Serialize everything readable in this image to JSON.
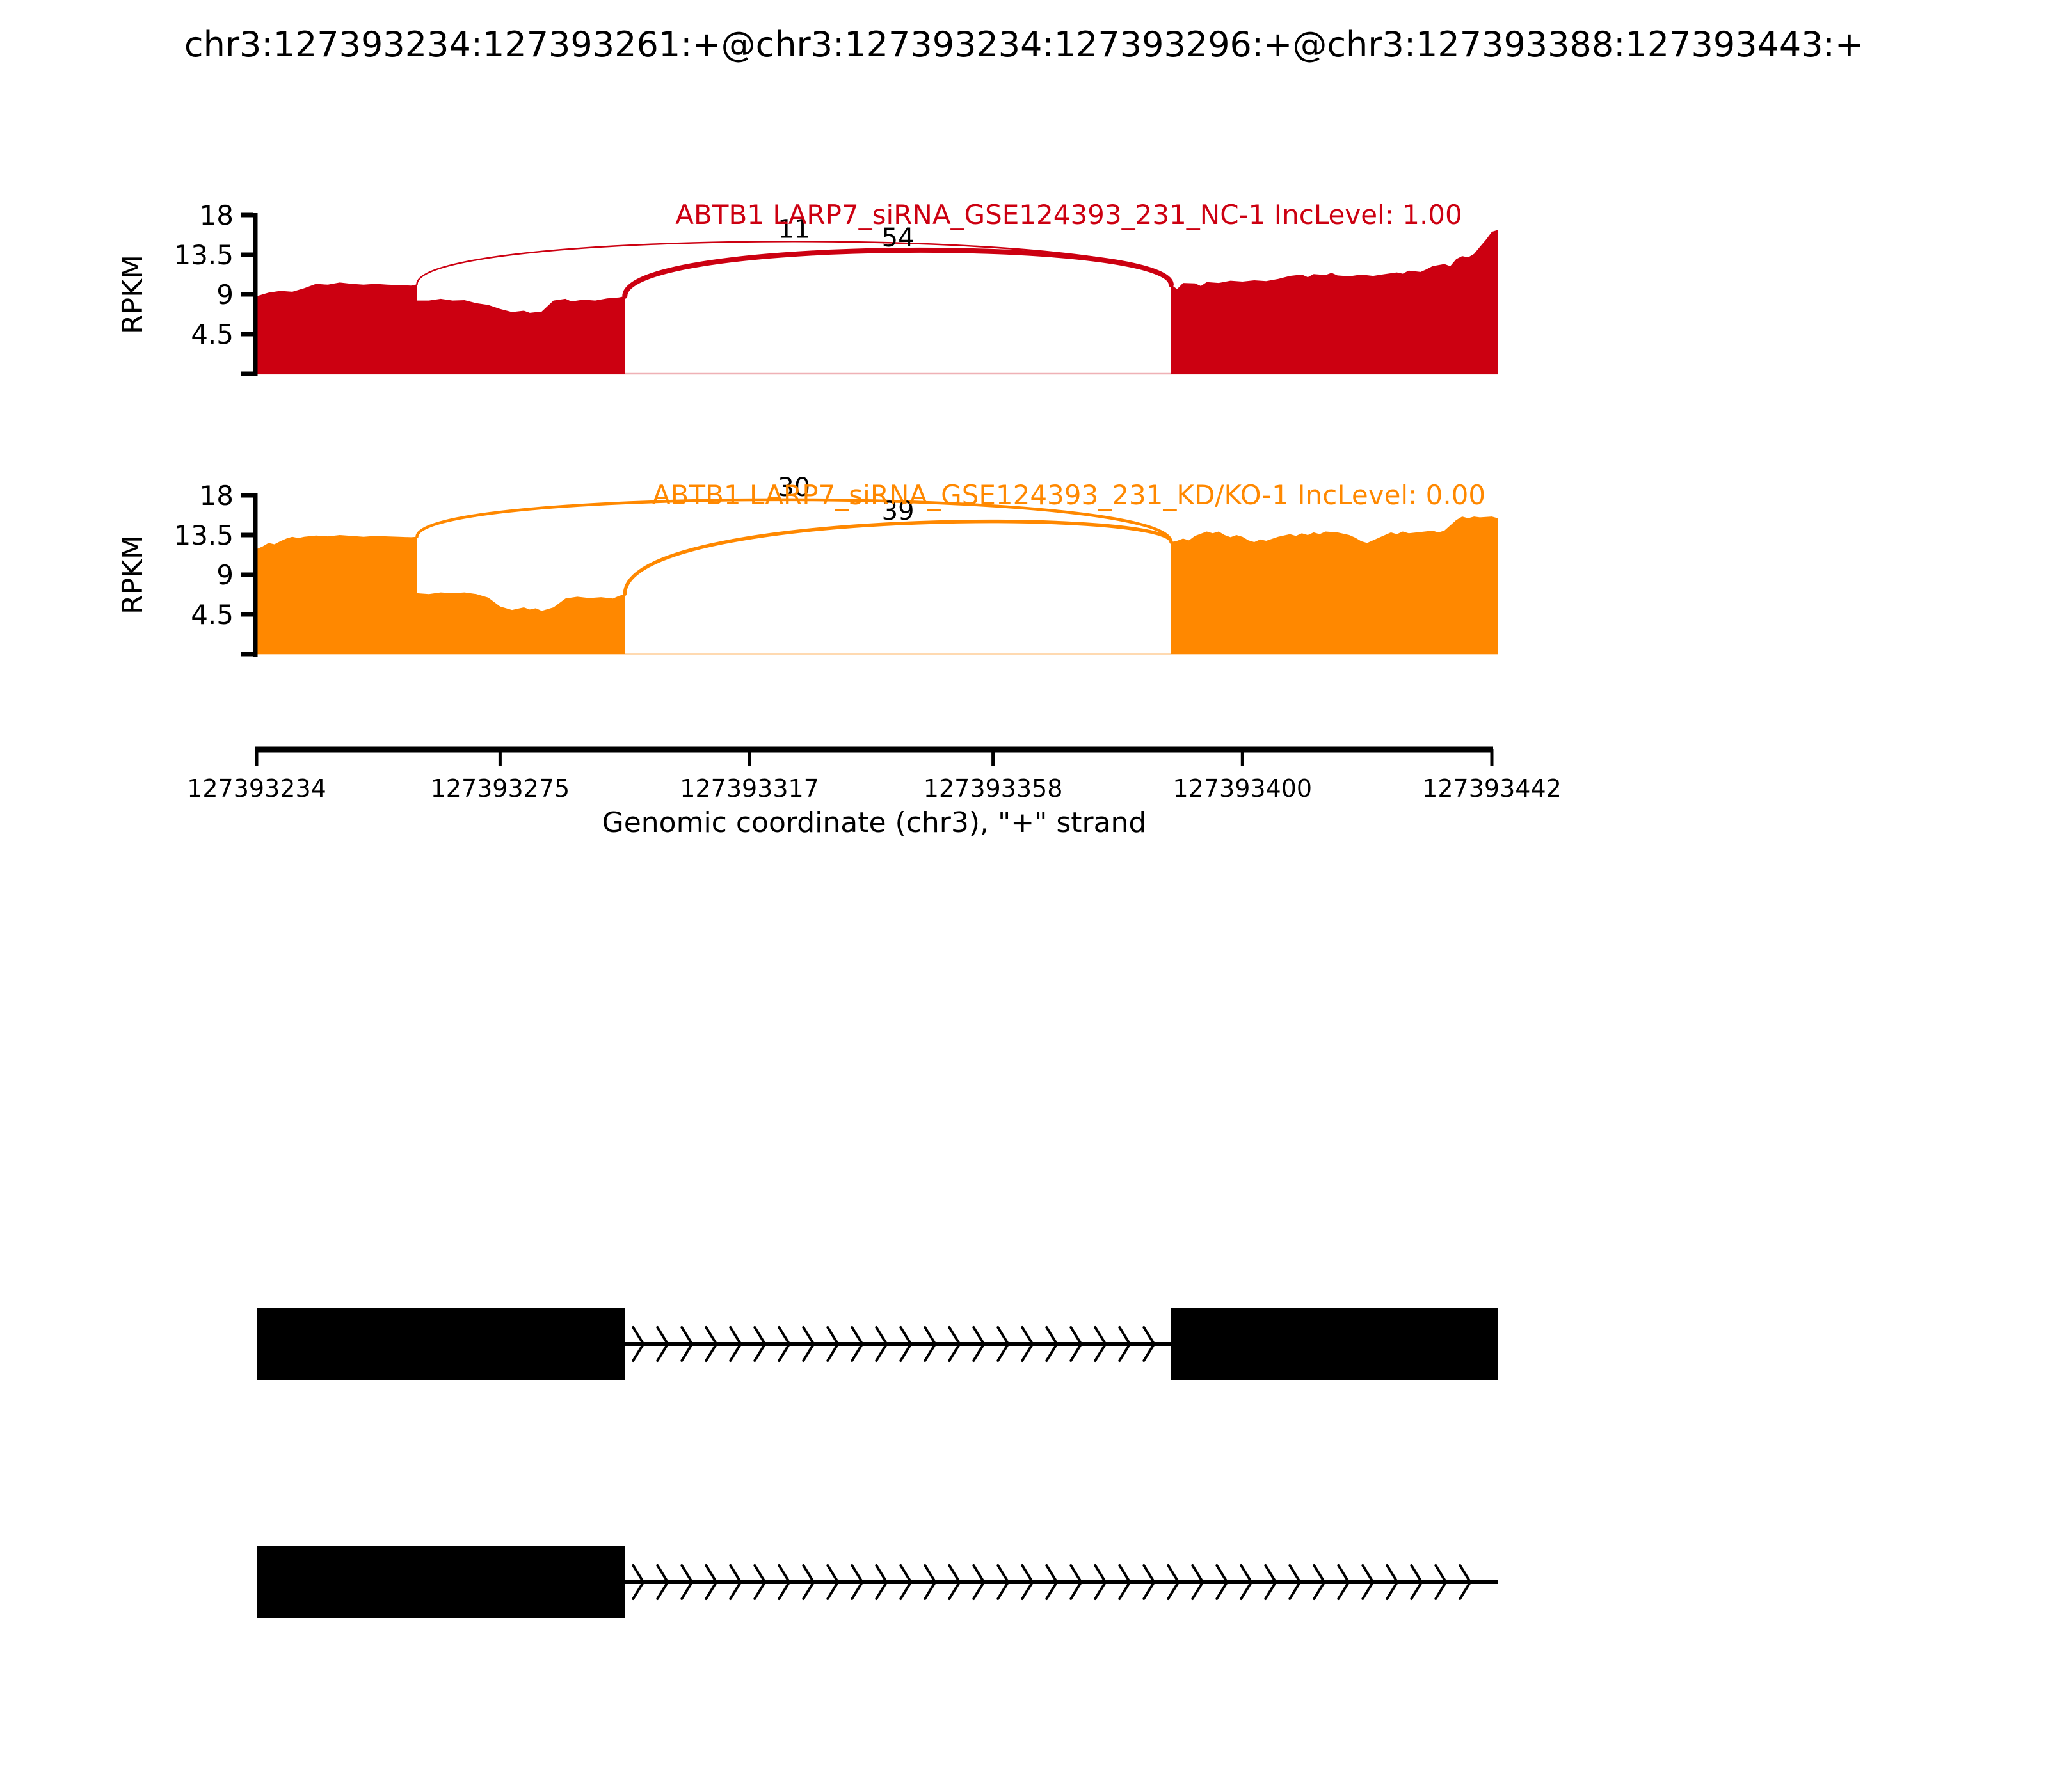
{
  "main_title": "chr3:127393234:127393261:+@chr3:127393234:127393296:+@chr3:127393388:127393443:+",
  "chart_data": {
    "type": "sashimi",
    "xlabel": "Genomic coordinate (chr3), \"+\" strand",
    "ylabel": "RPKM",
    "x_range": [
      127393234,
      127393442
    ],
    "x_ticks": [
      127393234,
      127393275,
      127393317,
      127393358,
      127393400,
      127393442
    ],
    "y_range": [
      0,
      18
    ],
    "y_ticks": [
      4.5,
      9,
      13.5,
      18
    ],
    "tracks": [
      {
        "label": "ABTB1 LARP7_siRNA_GSE124393_231_NC-1 IncLevel: 1.00",
        "color": "#CC0011",
        "coverage_segments": [
          {
            "points": [
              [
                127393234,
                8.8
              ],
              [
                127393236,
                9.2
              ],
              [
                127393238,
                9.4
              ],
              [
                127393240,
                9.3
              ],
              [
                127393242,
                9.7
              ],
              [
                127393244,
                10.2
              ],
              [
                127393246,
                10.1
              ],
              [
                127393248,
                10.35
              ],
              [
                127393250,
                10.2
              ],
              [
                127393252,
                10.1
              ],
              [
                127393254,
                10.2
              ],
              [
                127393256,
                10.1
              ],
              [
                127393258,
                10.05
              ],
              [
                127393260,
                10.0
              ],
              [
                127393261,
                10.15
              ],
              [
                127393261,
                8.3
              ],
              [
                127393263,
                8.3
              ],
              [
                127393265,
                8.5
              ],
              [
                127393267,
                8.3
              ],
              [
                127393269,
                8.35
              ],
              [
                127393271,
                8.0
              ],
              [
                127393273,
                7.8
              ],
              [
                127393275,
                7.35
              ],
              [
                127393277,
                7.0
              ],
              [
                127393279,
                7.15
              ],
              [
                127393280,
                6.9
              ],
              [
                127393282,
                7.05
              ],
              [
                127393284,
                8.3
              ],
              [
                127393286,
                8.5
              ],
              [
                127393287,
                8.2
              ],
              [
                127393289,
                8.4
              ],
              [
                127393291,
                8.3
              ],
              [
                127393293,
                8.55
              ],
              [
                127393295,
                8.65
              ],
              [
                127393296,
                8.8
              ]
            ]
          },
          {
            "points": [
              [
                127393388,
                10.1
              ],
              [
                127393389,
                9.6
              ],
              [
                127393390,
                10.3
              ],
              [
                127393392,
                10.25
              ],
              [
                127393393,
                9.95
              ],
              [
                127393394,
                10.4
              ],
              [
                127393396,
                10.3
              ],
              [
                127393398,
                10.55
              ],
              [
                127393400,
                10.45
              ],
              [
                127393402,
                10.6
              ],
              [
                127393404,
                10.5
              ],
              [
                127393406,
                10.75
              ],
              [
                127393408,
                11.1
              ],
              [
                127393410,
                11.25
              ],
              [
                127393411,
                10.95
              ],
              [
                127393412,
                11.3
              ],
              [
                127393414,
                11.2
              ],
              [
                127393415,
                11.45
              ],
              [
                127393416,
                11.15
              ],
              [
                127393418,
                11.05
              ],
              [
                127393420,
                11.25
              ],
              [
                127393422,
                11.1
              ],
              [
                127393424,
                11.3
              ],
              [
                127393426,
                11.5
              ],
              [
                127393427,
                11.35
              ],
              [
                127393428,
                11.7
              ],
              [
                127393430,
                11.55
              ],
              [
                127393431,
                11.85
              ],
              [
                127393432,
                12.2
              ],
              [
                127393434,
                12.45
              ],
              [
                127393435,
                12.2
              ],
              [
                127393436,
                13.0
              ],
              [
                127393437,
                13.35
              ],
              [
                127393438,
                13.2
              ],
              [
                127393439,
                13.6
              ],
              [
                127393440,
                14.4
              ],
              [
                127393441,
                15.2
              ],
              [
                127393442,
                16.1
              ],
              [
                127393443,
                16.3
              ]
            ]
          }
        ],
        "junctions": [
          {
            "from": 127393261,
            "to": 127393388,
            "count": 11,
            "start_rpkm": 10.15,
            "end_rpkm": 10.1,
            "apex_rpkm": 15.0,
            "stroke_width": 2.5
          },
          {
            "from": 127393296,
            "to": 127393388,
            "count": 54,
            "start_rpkm": 8.8,
            "end_rpkm": 10.1,
            "apex_rpkm": 14.0,
            "stroke_width": 8
          }
        ]
      },
      {
        "label": "ABTB1 LARP7_siRNA_GSE124393_231_KD/KO-1 IncLevel: 0.00",
        "color": "#FF8800",
        "coverage_segments": [
          {
            "points": [
              [
                127393234,
                11.9
              ],
              [
                127393235,
                12.2
              ],
              [
                127393236,
                12.6
              ],
              [
                127393237,
                12.45
              ],
              [
                127393238,
                12.8
              ],
              [
                127393239,
                13.1
              ],
              [
                127393240,
                13.3
              ],
              [
                127393241,
                13.15
              ],
              [
                127393242,
                13.3
              ],
              [
                127393244,
                13.45
              ],
              [
                127393246,
                13.35
              ],
              [
                127393248,
                13.5
              ],
              [
                127393250,
                13.4
              ],
              [
                127393252,
                13.3
              ],
              [
                127393254,
                13.4
              ],
              [
                127393256,
                13.35
              ],
              [
                127393258,
                13.3
              ],
              [
                127393260,
                13.25
              ],
              [
                127393261,
                13.3
              ],
              [
                127393261,
                6.9
              ],
              [
                127393263,
                6.8
              ],
              [
                127393265,
                7.0
              ],
              [
                127393267,
                6.9
              ],
              [
                127393269,
                7.0
              ],
              [
                127393271,
                6.8
              ],
              [
                127393273,
                6.4
              ],
              [
                127393275,
                5.4
              ],
              [
                127393277,
                5.0
              ],
              [
                127393279,
                5.3
              ],
              [
                127393280,
                5.05
              ],
              [
                127393281,
                5.2
              ],
              [
                127393282,
                4.9
              ],
              [
                127393284,
                5.3
              ],
              [
                127393286,
                6.3
              ],
              [
                127393288,
                6.5
              ],
              [
                127393290,
                6.35
              ],
              [
                127393292,
                6.45
              ],
              [
                127393294,
                6.3
              ],
              [
                127393295,
                6.6
              ],
              [
                127393296,
                6.8
              ]
            ]
          },
          {
            "points": [
              [
                127393388,
                12.7
              ],
              [
                127393389,
                12.85
              ],
              [
                127393390,
                13.1
              ],
              [
                127393391,
                12.9
              ],
              [
                127393392,
                13.4
              ],
              [
                127393394,
                13.9
              ],
              [
                127393395,
                13.7
              ],
              [
                127393396,
                13.9
              ],
              [
                127393397,
                13.5
              ],
              [
                127393398,
                13.25
              ],
              [
                127393399,
                13.5
              ],
              [
                127393400,
                13.3
              ],
              [
                127393401,
                12.9
              ],
              [
                127393402,
                12.7
              ],
              [
                127393403,
                13.0
              ],
              [
                127393404,
                12.85
              ],
              [
                127393406,
                13.3
              ],
              [
                127393408,
                13.6
              ],
              [
                127393409,
                13.4
              ],
              [
                127393410,
                13.7
              ],
              [
                127393411,
                13.5
              ],
              [
                127393412,
                13.8
              ],
              [
                127393413,
                13.6
              ],
              [
                127393414,
                13.9
              ],
              [
                127393416,
                13.8
              ],
              [
                127393418,
                13.5
              ],
              [
                127393419,
                13.2
              ],
              [
                127393420,
                12.8
              ],
              [
                127393421,
                12.6
              ],
              [
                127393422,
                12.9
              ],
              [
                127393424,
                13.5
              ],
              [
                127393425,
                13.8
              ],
              [
                127393426,
                13.6
              ],
              [
                127393427,
                13.9
              ],
              [
                127393428,
                13.7
              ],
              [
                127393430,
                13.85
              ],
              [
                127393432,
                14.0
              ],
              [
                127393433,
                13.8
              ],
              [
                127393434,
                14.0
              ],
              [
                127393436,
                15.2
              ],
              [
                127393437,
                15.6
              ],
              [
                127393438,
                15.4
              ],
              [
                127393439,
                15.6
              ],
              [
                127393440,
                15.5
              ],
              [
                127393442,
                15.6
              ],
              [
                127393443,
                15.4
              ]
            ]
          }
        ],
        "junctions": [
          {
            "from": 127393261,
            "to": 127393388,
            "count": 30,
            "start_rpkm": 13.3,
            "end_rpkm": 12.7,
            "apex_rpkm": 17.5,
            "stroke_width": 4.5
          },
          {
            "from": 127393296,
            "to": 127393388,
            "count": 39,
            "start_rpkm": 6.8,
            "end_rpkm": 12.7,
            "apex_rpkm": 14.8,
            "stroke_width": 5.5
          }
        ]
      }
    ],
    "gene_models": {
      "color": "#000000",
      "isoforms": [
        {
          "exons": [
            [
              127393234,
              127393296
            ],
            [
              127393388,
              127393443
            ]
          ],
          "arrow_line": [
            127393296,
            127393388
          ]
        },
        {
          "exons": [
            [
              127393234,
              127393296
            ]
          ],
          "arrow_line": [
            127393296,
            127393443
          ]
        }
      ]
    }
  }
}
